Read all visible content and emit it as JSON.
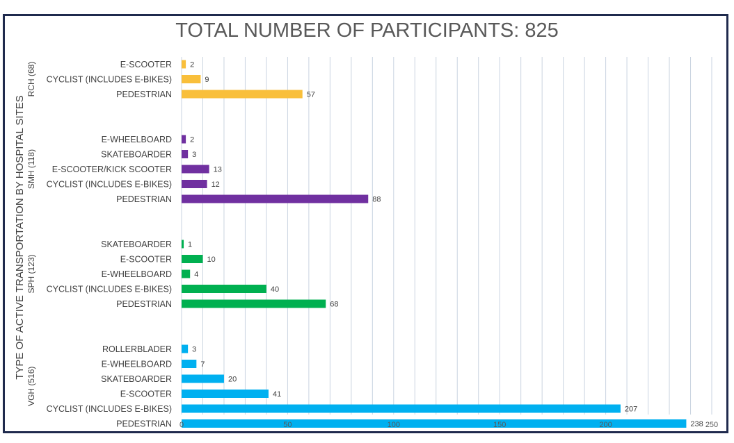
{
  "chart_data": {
    "type": "bar",
    "orientation": "horizontal",
    "title": "TOTAL NUMBER OF PARTICIPANTS: 825",
    "ylabel": "TYPE OF ACTIVE TRANSPORTATION BY HOSPITAL SITES",
    "xlabel": "",
    "xlim": [
      0,
      250
    ],
    "xticks": [
      0,
      50,
      100,
      150,
      200,
      250
    ],
    "minor_grid_step": 10,
    "groups": [
      {
        "label": "RCH (68)",
        "color": "#f9bf3b",
        "categories": [
          "E-SCOOTER",
          "CYCLIST (INCLUDES E-BIKES)",
          "PEDESTRIAN"
        ],
        "values": [
          2,
          9,
          57
        ]
      },
      {
        "label": "SMH (118)",
        "color": "#7030a0",
        "categories": [
          "E-WHEELBOARD",
          "SKATEBOARDER",
          "E-SCOOTER/KICK SCOOTER",
          "CYCLIST (INCLUDES E-BIKES)",
          "PEDESTRIAN"
        ],
        "values": [
          2,
          3,
          13,
          12,
          88
        ]
      },
      {
        "label": "SPH (123)",
        "color": "#00b050",
        "categories": [
          "SKATEBOARDER",
          "E-SCOOTER",
          "E-WHEELBOARD",
          "CYCLIST (INCLUDES E-BIKES)",
          "PEDESTRIAN"
        ],
        "values": [
          1,
          10,
          4,
          40,
          68
        ]
      },
      {
        "label": "VGH (516)",
        "color": "#00b0f0",
        "categories": [
          "ROLLERBLADER",
          "E-WHEELBOARD",
          "SKATEBOARDER",
          "E-SCOOTER",
          "CYCLIST (INCLUDES E-BIKES)",
          "PEDESTRIAN"
        ],
        "values": [
          3,
          7,
          20,
          41,
          207,
          238
        ]
      }
    ]
  }
}
